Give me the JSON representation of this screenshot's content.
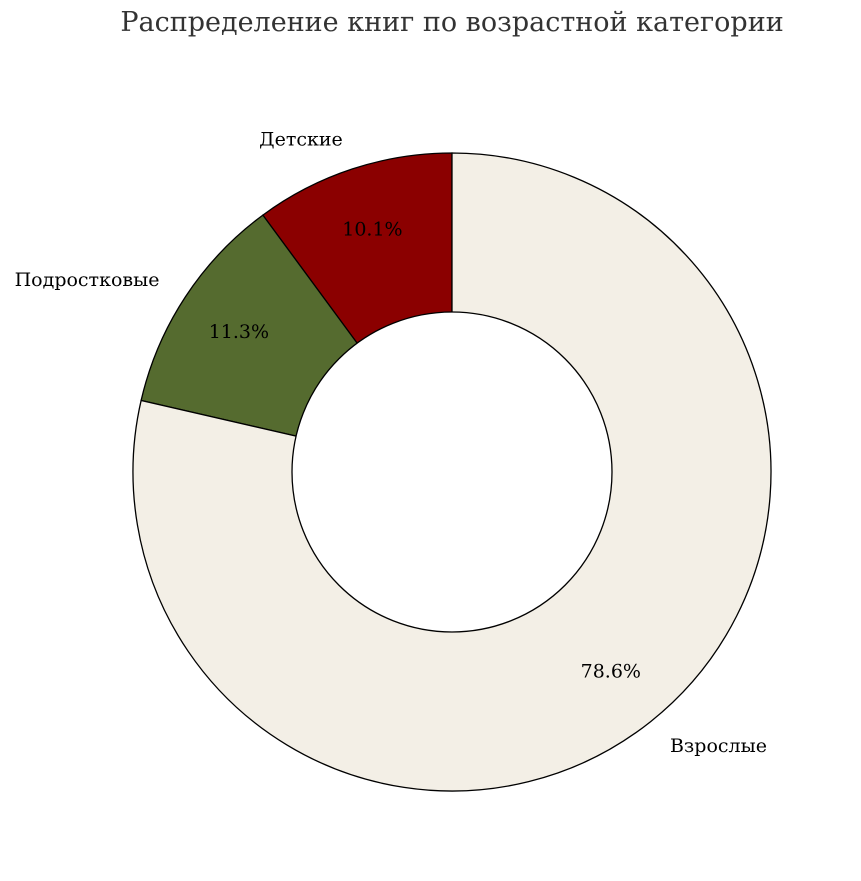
{
  "chart_data": {
    "type": "pie",
    "style": "donut",
    "title": "Распределение книг по возрастной категории",
    "start_angle_deg": 90,
    "direction": "counterclockwise",
    "slices": [
      {
        "label": "Детские",
        "value": 10.1,
        "pct_label": "10.1%",
        "color": "#8B0000"
      },
      {
        "label": "Подростковые",
        "value": 11.3,
        "pct_label": "11.3%",
        "color": "#556B2F"
      },
      {
        "label": "Взрослые",
        "value": 78.6,
        "pct_label": "78.6%",
        "color": "#F3EFE6"
      }
    ],
    "edge_color": "#000000",
    "center_color": "#FFFFFF"
  }
}
